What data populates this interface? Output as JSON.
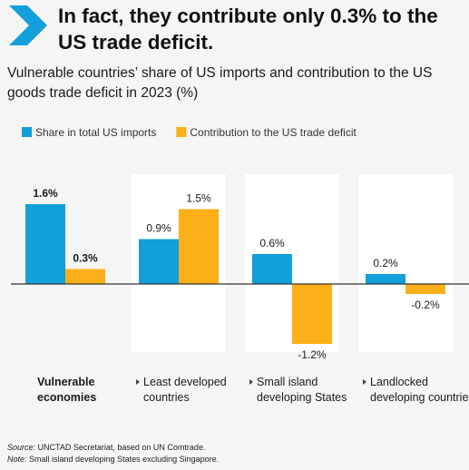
{
  "headline": "In fact, they contribute only 0.3% to the US trade deficit.",
  "subtitle": "Vulnerable countries’ share of US imports and contribution to the US goods trade deficit in 2023 (%)",
  "colors": {
    "share": "#129fda",
    "contribution": "#fbaf18",
    "chevron": "#129fda",
    "panel": "#ffffff",
    "background": "#f5f5f5",
    "baseline": "#333333"
  },
  "chart_data": {
    "type": "bar",
    "categories": [
      "Vulnerable economies",
      "Least developed countries",
      "Small island developing States",
      "Landlocked developing countries"
    ],
    "category_lines": [
      [
        "Vulnerable",
        "economies"
      ],
      [
        "Least developed",
        "countries"
      ],
      [
        "Small island",
        "developing States"
      ],
      [
        "Landlocked",
        "developing countries"
      ]
    ],
    "series": [
      {
        "name": "Share in total US imports",
        "values": [
          1.6,
          0.9,
          0.6,
          0.2
        ],
        "labels": [
          "1.6%",
          "0.9%",
          "0.6%",
          "0.2%"
        ]
      },
      {
        "name": "Contribution to the US trade deficit",
        "values": [
          0.3,
          1.5,
          -1.2,
          -0.2
        ],
        "labels": [
          "0.3%",
          "1.5%",
          "-1.2%",
          "-0.2%"
        ]
      }
    ],
    "ylim": [
      -1.5,
      2.0
    ],
    "legend_position": "top-left",
    "grid": false
  },
  "source_label": "Source:",
  "source_text": "UNCTAD Secretariat, based on UN Comtrade.",
  "note_label": "Note:",
  "note_text": "Small island developing States excluding Singapore."
}
